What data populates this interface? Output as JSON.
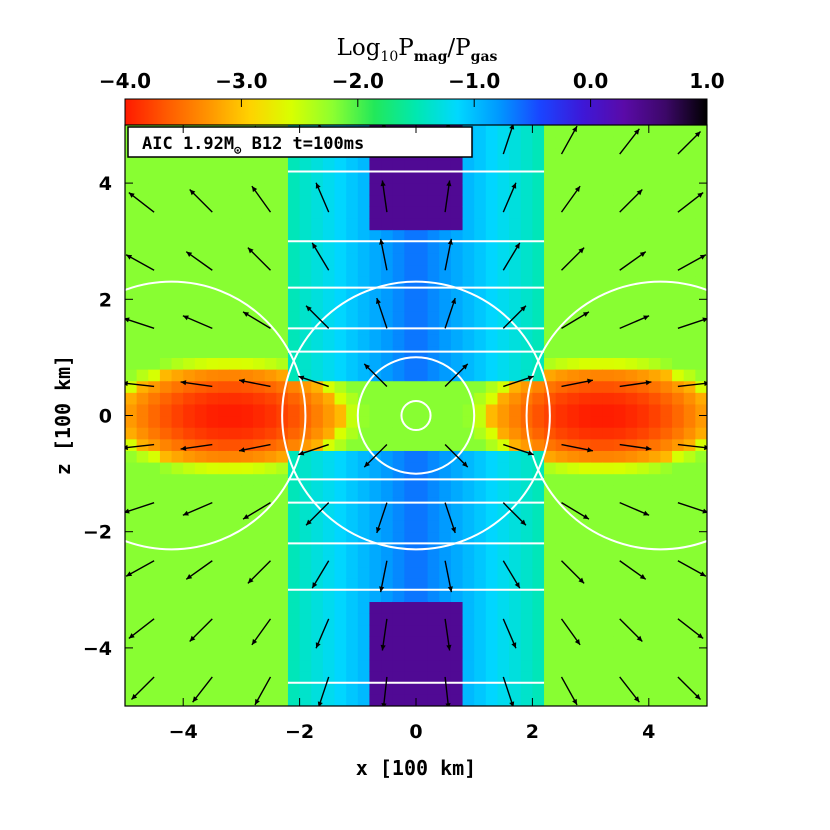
{
  "chart_data": {
    "type": "heatmap",
    "title": "Log10Pmag/Pgas",
    "title_parts": {
      "base": "Log",
      "base_sub": "10",
      "num": "P",
      "num_sub": "mag",
      "sep": "/",
      "den": "P",
      "den_sub": "gas"
    },
    "colorbar": {
      "position": "top",
      "range": [
        -4.0,
        1.0
      ],
      "ticks": [
        -4.0,
        -3.0,
        -2.0,
        -1.0,
        0.0,
        1.0
      ],
      "tick_labels": [
        "−4.0",
        "−3.0",
        "−2.0",
        "−1.0",
        "0.0",
        "1.0"
      ],
      "colormap": [
        "#ff1a00",
        "#ff5a00",
        "#ff9400",
        "#ffd200",
        "#d8ff00",
        "#8cff30",
        "#22e85a",
        "#00e8b0",
        "#00d8ff",
        "#0098ff",
        "#1a44ff",
        "#3d18d8",
        "#5a0aa8",
        "#3c0868",
        "#000000"
      ]
    },
    "annotation": {
      "prefix": "AIC 1.92M",
      "sun_symbol": "⊙",
      "suffix": " B12 t=100ms"
    },
    "xlabel": "x [100 km]",
    "ylabel": "z [100 km]",
    "xlim": [
      -5,
      5
    ],
    "ylim": [
      -5,
      5
    ],
    "xticks": [
      -4,
      -2,
      0,
      2,
      4
    ],
    "yticks": [
      -4,
      -2,
      0,
      2,
      4
    ],
    "xtick_labels": [
      "−4",
      "−2",
      "0",
      "2",
      "4"
    ],
    "ytick_labels": [
      "−4",
      "−2",
      "0",
      "2",
      "4"
    ],
    "field": {
      "background": -2.2,
      "regions": [
        {
          "type": "torus",
          "value": -4.0,
          "cx": 3.2,
          "cz": 0.0,
          "rx": 2.0,
          "rz": 0.9
        },
        {
          "type": "torus",
          "value": -4.0,
          "cx": -3.2,
          "cz": 0.0,
          "rx": 2.0,
          "rz": 0.9
        },
        {
          "type": "column",
          "value": -0.6,
          "half_width": 2.2,
          "zmin": 0.6
        },
        {
          "type": "jet",
          "value": 0.4,
          "half_width": 0.75,
          "zmin": 3.2
        }
      ]
    },
    "contours": [
      {
        "type": "circle",
        "center": [
          -4.2,
          0
        ],
        "radius": 2.3
      },
      {
        "type": "circle",
        "center": [
          4.2,
          0
        ],
        "radius": 2.3
      },
      {
        "type": "circle",
        "center": [
          0,
          0
        ],
        "radius": 2.3
      },
      {
        "type": "circle",
        "center": [
          0,
          0
        ],
        "radius": 1.0
      },
      {
        "type": "circle",
        "center": [
          0,
          0
        ],
        "radius": 0.25
      },
      {
        "type": "boundary",
        "z": [
          1.1,
          1.5,
          2.2,
          3.0,
          4.2
        ]
      },
      {
        "type": "boundary",
        "z": [
          -1.1,
          -1.5,
          -2.2,
          -3.0,
          -4.6
        ]
      }
    ],
    "vectors": {
      "grid": [
        -4.5,
        -3.5,
        -2.5,
        -1.5,
        -0.5,
        0.5,
        1.5,
        2.5,
        3.5,
        4.5
      ],
      "pattern": "outflow"
    },
    "grid": false,
    "legend": "none"
  }
}
